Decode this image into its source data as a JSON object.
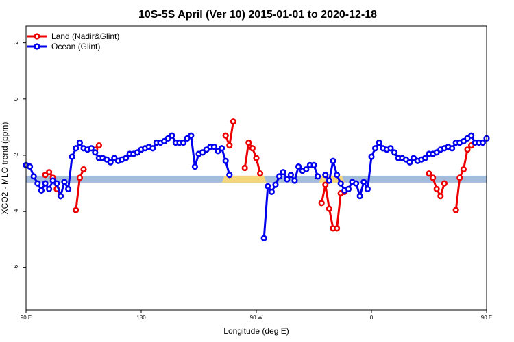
{
  "chart_data": {
    "type": "line",
    "title": "10S-5S April (Ver 10)   2015-01-01 to 2020-12-18",
    "xlabel": "Longitude (deg E)",
    "ylabel": "XCO2 - MLO trend (ppm)",
    "x_unit": "degrees of longitude traversed eastward from 90 E",
    "xlim": [
      0,
      360
    ],
    "ylim": [
      -7.5,
      2.6
    ],
    "x_ticks": [
      {
        "value": 0,
        "label": "90 E"
      },
      {
        "value": 90,
        "label": "180"
      },
      {
        "value": 180,
        "label": "90 W"
      },
      {
        "value": 270,
        "label": "0"
      },
      {
        "value": 360,
        "label": "90 E"
      },
      {
        "value": 450,
        "label": "180"
      }
    ],
    "y_ticks": [
      {
        "value": 2,
        "label": "2"
      },
      {
        "value": 0,
        "label": "0"
      },
      {
        "value": -2,
        "label": "-2"
      },
      {
        "value": -4,
        "label": "-4"
      },
      {
        "value": -6,
        "label": "-6"
      }
    ],
    "grid": false,
    "legend_position": "top-left",
    "series": [
      {
        "name": "Land (Nadir&Glint)",
        "color": "#ee0000",
        "x": [
          15,
          18,
          21,
          24,
          27,
          39,
          42,
          45,
          54,
          57,
          156,
          159,
          162,
          171,
          174,
          177,
          180,
          183,
          231,
          234,
          237,
          240,
          243,
          246,
          249,
          252,
          315,
          318,
          321,
          324,
          327,
          336,
          339,
          342,
          345,
          348
        ],
        "y": [
          -2.7,
          -2.6,
          -2.8,
          -3.2,
          -3.45,
          -3.95,
          -2.8,
          -2.5,
          -1.8,
          -1.65,
          -1.3,
          -1.65,
          -0.8,
          -2.45,
          -1.55,
          -1.75,
          -2.1,
          -2.65,
          -3.7,
          -3.05,
          -3.9,
          -4.6,
          -4.6,
          -3.35,
          -3.3,
          -3.2,
          -2.65,
          -2.8,
          -3.2,
          -3.45,
          -3.0,
          -3.95,
          -2.8,
          -2.5,
          -1.8,
          -1.65
        ]
      },
      {
        "name": "Ocean (Glint)",
        "color": "#0000ee",
        "x": [
          0,
          3,
          6,
          9,
          12,
          15,
          18,
          21,
          24,
          27,
          30,
          33,
          36,
          39,
          42,
          45,
          48,
          51,
          54,
          57,
          60,
          63,
          66,
          69,
          72,
          75,
          78,
          81,
          84,
          87,
          90,
          93,
          96,
          99,
          102,
          105,
          108,
          111,
          114,
          117,
          120,
          123,
          126,
          129,
          132,
          135,
          138,
          141,
          144,
          147,
          150,
          153,
          156,
          159,
          186,
          189,
          192,
          195,
          198,
          201,
          204,
          207,
          210,
          213,
          216,
          219,
          222,
          225,
          228,
          234,
          237,
          240,
          243,
          246,
          249,
          252,
          255,
          258,
          261,
          264,
          267,
          270,
          273,
          276,
          279,
          282,
          285,
          288,
          291,
          294,
          297,
          300,
          303,
          306,
          309,
          312,
          315,
          318,
          321,
          324,
          327,
          330,
          333,
          336,
          339,
          342,
          345,
          348,
          351,
          354,
          357,
          360
        ],
        "y": [
          -2.35,
          -2.4,
          -2.75,
          -3.0,
          -3.25,
          -3.0,
          -3.2,
          -2.9,
          -3.0,
          -3.45,
          -2.95,
          -3.2,
          -2.05,
          -1.75,
          -1.55,
          -1.75,
          -1.8,
          -1.75,
          -1.9,
          -2.1,
          -2.1,
          -2.15,
          -2.25,
          -2.1,
          -2.2,
          -2.15,
          -2.1,
          -1.95,
          -1.95,
          -1.9,
          -1.8,
          -1.75,
          -1.7,
          -1.75,
          -1.55,
          -1.55,
          -1.5,
          -1.4,
          -1.3,
          -1.55,
          -1.55,
          -1.55,
          -1.4,
          -1.3,
          -2.4,
          -1.95,
          -1.9,
          -1.8,
          -1.7,
          -1.7,
          -1.85,
          -1.75,
          -2.2,
          -2.7,
          -4.95,
          -3.1,
          -3.3,
          -3.05,
          -2.75,
          -2.6,
          -2.85,
          -2.7,
          -2.9,
          -2.4,
          -2.55,
          -2.5,
          -2.35,
          -2.35,
          -2.75,
          -2.7,
          -2.9,
          -2.2,
          -2.7,
          -3.0,
          -3.25,
          -3.2,
          -2.95,
          -3.0,
          -3.45,
          -2.95,
          -3.2,
          -2.05,
          -1.75,
          -1.55,
          -1.75,
          -1.8,
          -1.75,
          -1.9,
          -2.1,
          -2.1,
          -2.15,
          -2.25,
          -2.1,
          -2.2,
          -2.15,
          -2.1,
          -1.95,
          -1.95,
          -1.9,
          -1.8,
          -1.75,
          -1.7,
          -1.75,
          -1.55,
          -1.55,
          -1.5,
          -1.4,
          -1.3,
          -1.55,
          -1.55,
          -1.55,
          -1.4
        ]
      }
    ],
    "baseline_band": {
      "y": -2.85,
      "ocean_color": "#a4bcdc",
      "land_color": "#f5d67a",
      "land_segments": [
        [
          153,
          188
        ],
        [
          229,
          249
        ]
      ]
    }
  }
}
